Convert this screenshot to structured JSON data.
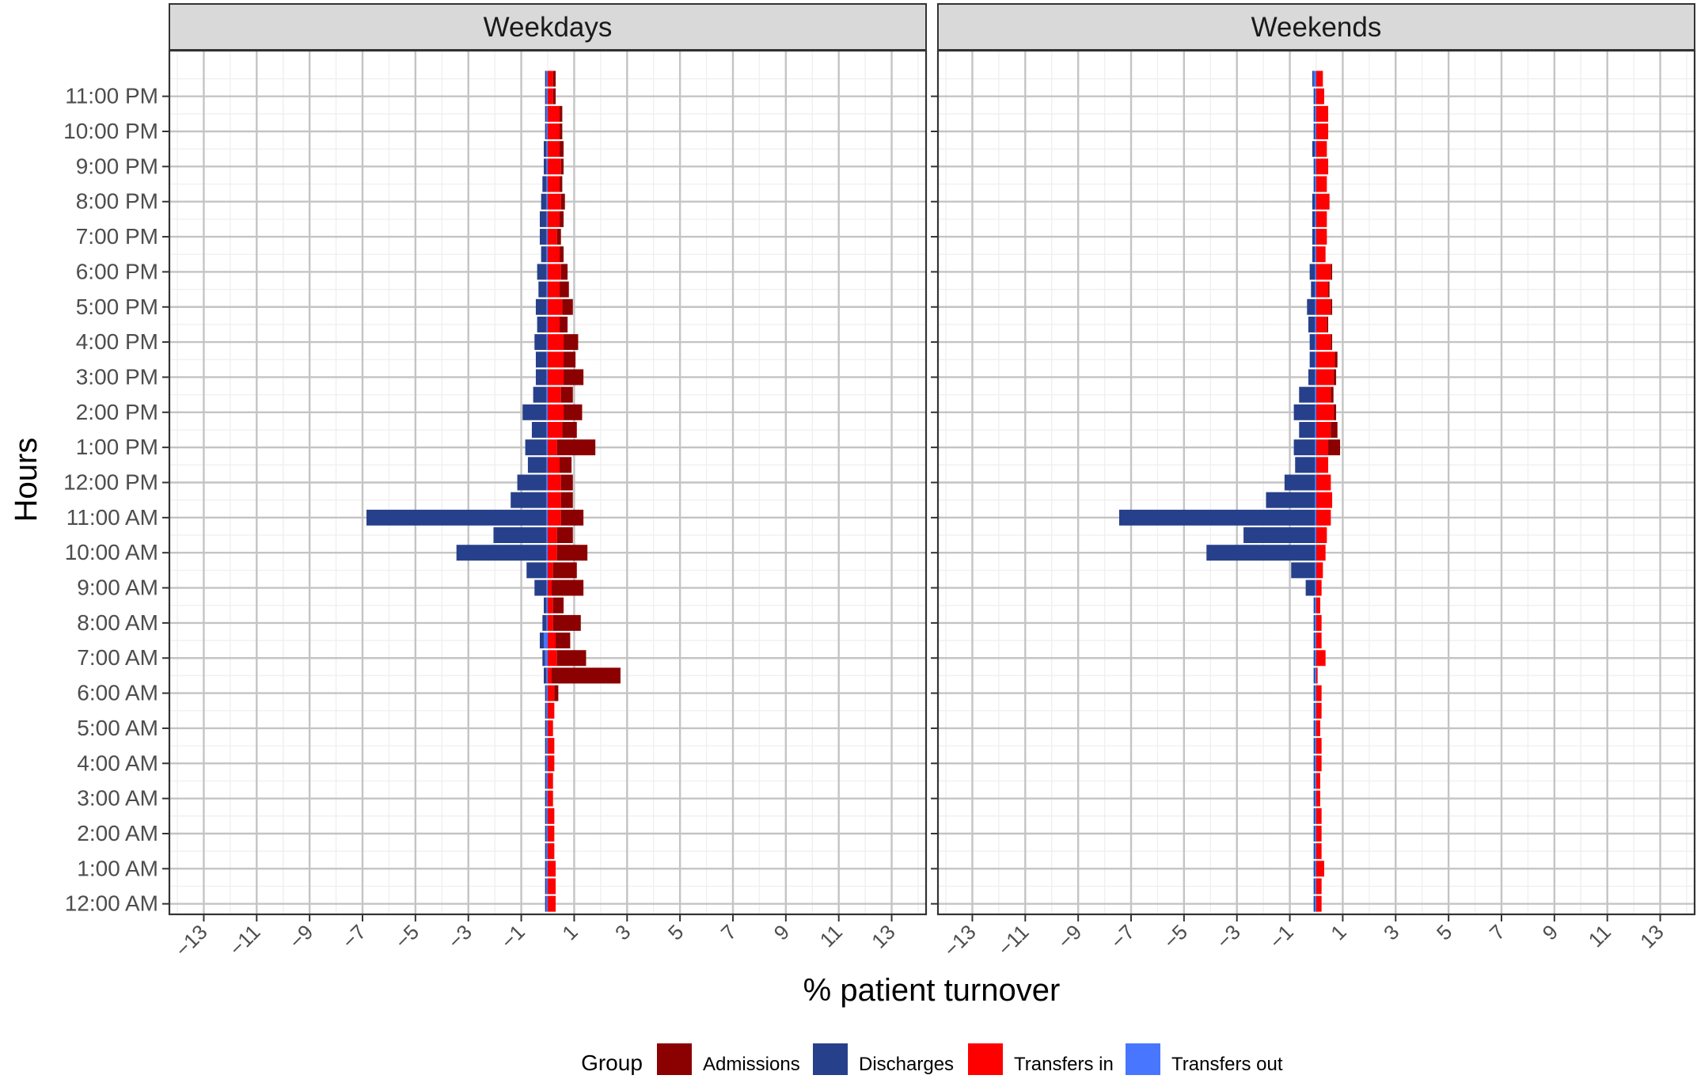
{
  "chart_data": {
    "type": "bar",
    "orientation": "horizontal",
    "stacked": true,
    "xlabel": "% patient turnover",
    "ylabel": "Hours",
    "xlim": [
      -14.3,
      14.3
    ],
    "x_ticks": [
      -13,
      -11,
      -9,
      -7,
      -5,
      -3,
      -1,
      1,
      3,
      5,
      7,
      9,
      11,
      13
    ],
    "x_tick_labels": [
      "−13",
      "−11",
      "−9",
      "−7",
      "−5",
      "−3",
      "−1",
      "1",
      "3",
      "5",
      "7",
      "9",
      "11",
      "13"
    ],
    "grid": true,
    "hours": [
      "12:00 AM",
      "12:30 AM",
      "1:00 AM",
      "1:30 AM",
      "2:00 AM",
      "2:30 AM",
      "3:00 AM",
      "3:30 AM",
      "4:00 AM",
      "4:30 AM",
      "5:00 AM",
      "5:30 AM",
      "6:00 AM",
      "6:30 AM",
      "7:00 AM",
      "7:30 AM",
      "8:00 AM",
      "8:30 AM",
      "9:00 AM",
      "9:30 AM",
      "10:00 AM",
      "10:30 AM",
      "11:00 AM",
      "11:30 AM",
      "12:00 PM",
      "12:30 PM",
      "1:00 PM",
      "1:30 PM",
      "2:00 PM",
      "2:30 PM",
      "3:00 PM",
      "3:30 PM",
      "4:00 PM",
      "4:30 PM",
      "5:00 PM",
      "5:30 PM",
      "6:00 PM",
      "6:30 PM",
      "7:00 PM",
      "7:30 PM",
      "8:00 PM",
      "8:30 PM",
      "9:00 PM",
      "9:30 PM",
      "10:00 PM",
      "10:30 PM",
      "11:00 PM",
      "11:30 PM"
    ],
    "hour_labels_shown": [
      "12:00 AM",
      "1:00 AM",
      "2:00 AM",
      "3:00 AM",
      "4:00 AM",
      "5:00 AM",
      "6:00 AM",
      "7:00 AM",
      "8:00 AM",
      "9:00 AM",
      "10:00 AM",
      "11:00 AM",
      "12:00 PM",
      "1:00 PM",
      "2:00 PM",
      "3:00 PM",
      "4:00 PM",
      "5:00 PM",
      "6:00 PM",
      "7:00 PM",
      "8:00 PM",
      "9:00 PM",
      "10:00 PM",
      "11:00 PM"
    ],
    "legend": {
      "title": "Group",
      "position": "bottom",
      "entries": [
        "Admissions",
        "Discharges",
        "Transfers in",
        "Transfers out"
      ]
    },
    "colors": {
      "Admissions": "#8b0000",
      "Discharges": "#27408b",
      "Transfers in": "#ff0000",
      "Transfers out": "#4876ff"
    },
    "panels": [
      {
        "title": "Weekdays",
        "series": [
          {
            "name": "Admissions",
            "values": [
              0,
              0,
              0,
              0,
              0,
              0,
              0,
              0,
              0,
              0,
              0,
              0,
              0.15,
              2.6,
              1.1,
              0.55,
              1.05,
              0.4,
              1.2,
              0.9,
              1.15,
              0.6,
              0.85,
              0.45,
              0.45,
              0.45,
              1.45,
              0.55,
              0.7,
              0.45,
              0.75,
              0.45,
              0.55,
              0.3,
              0.4,
              0.35,
              0.25,
              0.15,
              0.15,
              0.15,
              0.15,
              0.1,
              0.1,
              0.15,
              0.1,
              0.1,
              0.1,
              0.1
            ]
          },
          {
            "name": "Transfers in",
            "values": [
              0.3,
              0.3,
              0.3,
              0.25,
              0.25,
              0.25,
              0.2,
              0.2,
              0.25,
              0.25,
              0.2,
              0.25,
              0.25,
              0.15,
              0.35,
              0.3,
              0.2,
              0.2,
              0.15,
              0.2,
              0.35,
              0.35,
              0.5,
              0.5,
              0.5,
              0.45,
              0.35,
              0.55,
              0.6,
              0.5,
              0.6,
              0.6,
              0.6,
              0.45,
              0.55,
              0.45,
              0.5,
              0.45,
              0.35,
              0.45,
              0.5,
              0.45,
              0.5,
              0.45,
              0.45,
              0.45,
              0.2,
              0.2
            ]
          },
          {
            "name": "Discharges",
            "values": [
              -0.05,
              -0.05,
              -0.05,
              -0.05,
              -0.05,
              -0.05,
              -0.05,
              -0.05,
              -0.05,
              -0.05,
              -0.05,
              -0.05,
              -0.05,
              -0.1,
              -0.1,
              -0.15,
              -0.15,
              -0.1,
              -0.45,
              -0.75,
              -3.4,
              -2.0,
              -6.8,
              -1.35,
              -1.1,
              -0.7,
              -0.8,
              -0.55,
              -0.9,
              -0.5,
              -0.4,
              -0.4,
              -0.45,
              -0.35,
              -0.4,
              -0.3,
              -0.35,
              -0.2,
              -0.25,
              -0.25,
              -0.2,
              -0.15,
              -0.1,
              -0.1,
              -0.05,
              -0.05,
              -0.05,
              -0.05
            ]
          },
          {
            "name": "Transfers out",
            "values": [
              -0.05,
              -0.05,
              -0.05,
              -0.05,
              -0.05,
              -0.05,
              -0.05,
              -0.05,
              -0.05,
              -0.05,
              -0.05,
              -0.05,
              -0.05,
              -0.05,
              -0.1,
              -0.15,
              -0.05,
              -0.05,
              -0.05,
              -0.05,
              -0.05,
              -0.05,
              -0.05,
              -0.05,
              -0.05,
              -0.05,
              -0.05,
              -0.05,
              -0.05,
              -0.05,
              -0.05,
              -0.05,
              -0.05,
              -0.05,
              -0.05,
              -0.05,
              -0.05,
              -0.05,
              -0.05,
              -0.05,
              -0.05,
              -0.05,
              -0.05,
              -0.05,
              -0.05,
              -0.05,
              -0.05,
              -0.05
            ]
          }
        ]
      },
      {
        "title": "Weekends",
        "series": [
          {
            "name": "Admissions",
            "values": [
              0,
              0,
              0,
              0,
              0,
              0,
              0,
              0,
              0,
              0,
              0,
              0,
              0,
              0,
              0,
              0,
              0,
              0,
              0,
              0,
              0,
              0,
              0,
              0,
              0,
              0,
              0.45,
              0.25,
              0.1,
              0.1,
              0.1,
              0.1,
              0.05,
              0.05,
              0.05,
              0.05,
              0.05,
              0,
              0,
              0,
              0,
              0,
              0,
              0,
              0,
              0,
              0,
              0
            ]
          },
          {
            "name": "Transfers in",
            "values": [
              0.2,
              0.2,
              0.3,
              0.2,
              0.2,
              0.2,
              0.15,
              0.15,
              0.2,
              0.2,
              0.15,
              0.2,
              0.2,
              0.05,
              0.35,
              0.2,
              0.2,
              0.15,
              0.2,
              0.25,
              0.35,
              0.4,
              0.55,
              0.6,
              0.55,
              0.45,
              0.45,
              0.55,
              0.65,
              0.55,
              0.65,
              0.7,
              0.55,
              0.4,
              0.55,
              0.45,
              0.55,
              0.35,
              0.4,
              0.4,
              0.5,
              0.4,
              0.45,
              0.4,
              0.45,
              0.45,
              0.3,
              0.25
            ]
          },
          {
            "name": "Discharges",
            "values": [
              -0.05,
              -0.05,
              -0.05,
              -0.05,
              -0.05,
              -0.05,
              -0.05,
              -0.05,
              -0.05,
              -0.05,
              -0.05,
              -0.05,
              -0.05,
              -0.05,
              -0.05,
              -0.05,
              -0.05,
              -0.05,
              -0.35,
              -0.9,
              -4.1,
              -2.7,
              -7.4,
              -1.85,
              -1.15,
              -0.75,
              -0.8,
              -0.6,
              -0.8,
              -0.6,
              -0.25,
              -0.2,
              -0.2,
              -0.25,
              -0.3,
              -0.15,
              -0.2,
              -0.1,
              -0.1,
              -0.1,
              -0.1,
              -0.05,
              -0.05,
              -0.1,
              -0.05,
              -0.05,
              -0.05,
              -0.05
            ]
          },
          {
            "name": "Transfers out",
            "values": [
              -0.05,
              -0.05,
              -0.05,
              -0.05,
              -0.05,
              -0.05,
              -0.05,
              -0.05,
              -0.05,
              -0.05,
              -0.05,
              -0.05,
              -0.05,
              -0.05,
              -0.05,
              -0.05,
              -0.05,
              -0.05,
              -0.05,
              -0.05,
              -0.05,
              -0.05,
              -0.05,
              -0.05,
              -0.05,
              -0.05,
              -0.05,
              -0.05,
              -0.05,
              -0.05,
              -0.05,
              -0.05,
              -0.05,
              -0.05,
              -0.05,
              -0.05,
              -0.05,
              -0.05,
              -0.05,
              -0.05,
              -0.05,
              -0.05,
              -0.05,
              -0.05,
              -0.05,
              -0.05,
              -0.05,
              -0.1
            ]
          }
        ]
      }
    ]
  }
}
